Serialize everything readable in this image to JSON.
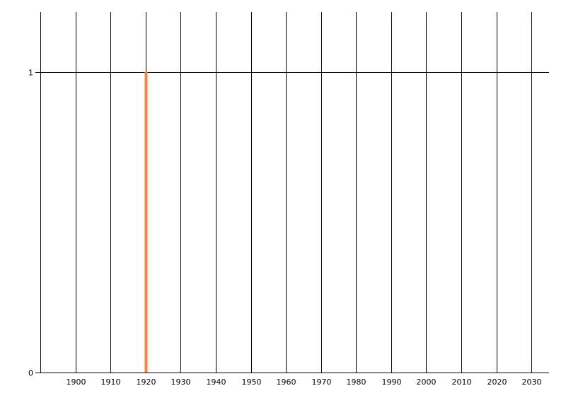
{
  "chart_data": {
    "type": "bar",
    "title": "",
    "xlabel": "",
    "ylabel": "",
    "x_ticks": [
      "1900",
      "1910",
      "1920",
      "1930",
      "1940",
      "1950",
      "1960",
      "1970",
      "1980",
      "1990",
      "2000",
      "2010",
      "2020",
      "2030"
    ],
    "y_ticks": [
      "0",
      "1"
    ],
    "xlim": [
      1890,
      2035
    ],
    "ylim": [
      0,
      1.2
    ],
    "grid": "vertical lines at each decade, horizontal line at y=1",
    "series": [
      {
        "x": [
          1920
        ],
        "values": [
          1
        ],
        "color": "#FF7F3F"
      }
    ]
  }
}
